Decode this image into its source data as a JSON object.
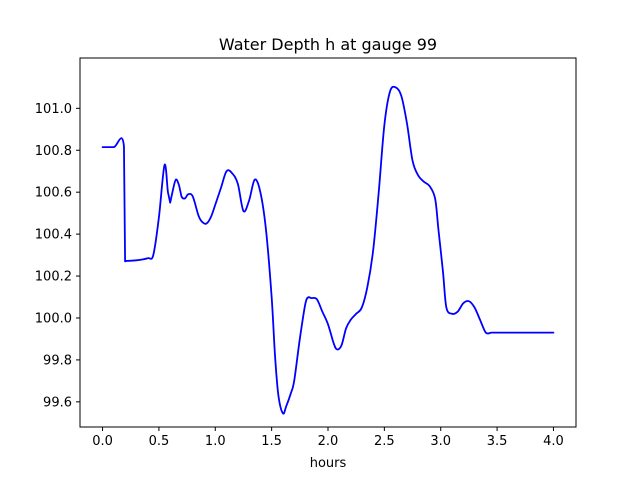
{
  "chart_data": {
    "type": "line",
    "title": "Water Depth h at gauge 99",
    "xlabel": "hours",
    "ylabel": "",
    "xlim": [
      -0.2,
      4.2
    ],
    "ylim": [
      99.48,
      101.24
    ],
    "x_ticks": [
      0.0,
      0.5,
      1.0,
      1.5,
      2.0,
      2.5,
      3.0,
      3.5,
      4.0
    ],
    "x_tick_labels": [
      "0.0",
      "0.5",
      "1.0",
      "1.5",
      "2.0",
      "2.5",
      "3.0",
      "3.5",
      "4.0"
    ],
    "y_ticks": [
      99.6,
      99.8,
      100.0,
      100.2,
      100.4,
      100.6,
      100.8,
      101.0
    ],
    "y_tick_labels": [
      "99.6",
      "99.8",
      "100.0",
      "100.2",
      "100.4",
      "100.6",
      "100.8",
      "101.0"
    ],
    "grid": false,
    "line_color": "#0000ff",
    "series": [
      {
        "x": [
          0.0,
          0.1,
          0.19,
          0.2,
          0.21,
          0.3,
          0.4,
          0.45,
          0.5,
          0.55,
          0.58,
          0.6,
          0.62,
          0.65,
          0.68,
          0.7,
          0.73,
          0.76,
          0.8,
          0.85,
          0.88,
          0.92,
          0.96,
          1.0,
          1.05,
          1.1,
          1.15,
          1.2,
          1.25,
          1.3,
          1.35,
          1.4,
          1.45,
          1.5,
          1.53,
          1.56,
          1.6,
          1.63,
          1.67,
          1.7,
          1.75,
          1.8,
          1.83,
          1.85,
          1.9,
          1.95,
          2.0,
          2.05,
          2.08,
          2.12,
          2.16,
          2.2,
          2.25,
          2.3,
          2.35,
          2.4,
          2.45,
          2.5,
          2.55,
          2.6,
          2.65,
          2.7,
          2.75,
          2.8,
          2.85,
          2.9,
          2.95,
          2.98,
          3.02,
          3.05,
          3.1,
          3.15,
          3.2,
          3.25,
          3.3,
          3.35,
          3.4,
          3.45,
          3.5,
          3.55,
          3.6,
          3.65,
          3.7,
          3.75,
          3.8,
          3.85,
          3.9,
          3.95,
          4.0
        ],
        "values": [
          100.815,
          100.815,
          100.818,
          100.27,
          100.272,
          100.275,
          100.285,
          100.3,
          100.48,
          100.73,
          100.6,
          100.55,
          100.6,
          100.66,
          100.63,
          100.58,
          100.57,
          100.59,
          100.58,
          100.49,
          100.46,
          100.45,
          100.48,
          100.54,
          100.62,
          100.7,
          100.69,
          100.64,
          100.51,
          100.56,
          100.66,
          100.6,
          100.42,
          100.1,
          99.82,
          99.63,
          99.545,
          99.58,
          99.64,
          99.7,
          99.9,
          100.07,
          100.1,
          100.095,
          100.09,
          100.03,
          99.97,
          99.88,
          99.85,
          99.87,
          99.95,
          99.99,
          100.02,
          100.05,
          100.15,
          100.32,
          100.6,
          100.92,
          101.08,
          101.1,
          101.06,
          100.93,
          100.75,
          100.68,
          100.65,
          100.63,
          100.57,
          100.42,
          100.22,
          100.05,
          100.02,
          100.03,
          100.07,
          100.08,
          100.05,
          99.99,
          99.93,
          99.93,
          99.93,
          99.93,
          99.93,
          99.93,
          99.93,
          99.93,
          99.93,
          99.93,
          99.93,
          99.93,
          99.93
        ]
      }
    ]
  }
}
